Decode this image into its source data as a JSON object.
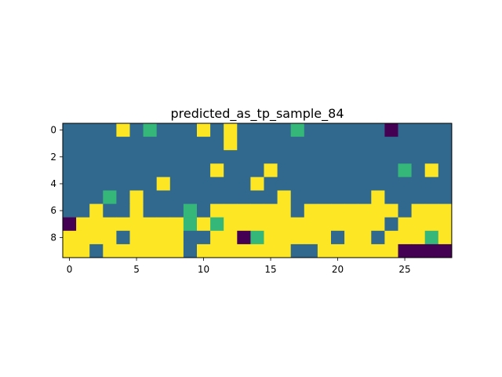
{
  "chart_data": {
    "type": "heatmap",
    "title": "predicted_as_tp_sample_84",
    "xlabel": "",
    "ylabel": "",
    "x_ticks": [
      0,
      5,
      10,
      15,
      20,
      25
    ],
    "y_ticks": [
      0,
      2,
      4,
      6,
      8
    ],
    "xlim": [
      -0.5,
      28.5
    ],
    "ylim": [
      9.5,
      -0.5
    ],
    "grid": false,
    "colormap": "viridis",
    "value_colors": {
      "0": "#440154",
      "1": "#31688e",
      "2": "#35b779",
      "3": "#fde725"
    },
    "matrix": [
      [
        1,
        1,
        1,
        1,
        3,
        1,
        2,
        1,
        1,
        1,
        3,
        1,
        3,
        1,
        1,
        1,
        1,
        2,
        1,
        1,
        1,
        1,
        1,
        1,
        0,
        1,
        1,
        1,
        1
      ],
      [
        1,
        1,
        1,
        1,
        1,
        1,
        1,
        1,
        1,
        1,
        1,
        1,
        3,
        1,
        1,
        1,
        1,
        1,
        1,
        1,
        1,
        1,
        1,
        1,
        1,
        1,
        1,
        1,
        1
      ],
      [
        1,
        1,
        1,
        1,
        1,
        1,
        1,
        1,
        1,
        1,
        1,
        1,
        1,
        1,
        1,
        1,
        1,
        1,
        1,
        1,
        1,
        1,
        1,
        1,
        1,
        1,
        1,
        1,
        1
      ],
      [
        1,
        1,
        1,
        1,
        1,
        1,
        1,
        1,
        1,
        1,
        1,
        3,
        1,
        1,
        1,
        3,
        1,
        1,
        1,
        1,
        1,
        1,
        1,
        1,
        1,
        2,
        1,
        3,
        1
      ],
      [
        1,
        1,
        1,
        1,
        1,
        1,
        1,
        3,
        1,
        1,
        1,
        1,
        1,
        1,
        3,
        1,
        1,
        1,
        1,
        1,
        1,
        1,
        1,
        1,
        1,
        1,
        1,
        1,
        1
      ],
      [
        1,
        1,
        1,
        2,
        1,
        3,
        1,
        1,
        1,
        1,
        1,
        1,
        1,
        1,
        1,
        1,
        3,
        1,
        1,
        1,
        1,
        1,
        1,
        3,
        1,
        1,
        1,
        1,
        1
      ],
      [
        1,
        1,
        3,
        1,
        1,
        3,
        1,
        1,
        1,
        2,
        1,
        3,
        3,
        3,
        3,
        3,
        3,
        1,
        3,
        3,
        3,
        3,
        3,
        3,
        3,
        1,
        3,
        3,
        3
      ],
      [
        0,
        3,
        3,
        3,
        3,
        3,
        3,
        3,
        3,
        2,
        3,
        2,
        3,
        3,
        3,
        3,
        3,
        3,
        3,
        3,
        3,
        3,
        3,
        3,
        1,
        3,
        3,
        3,
        3
      ],
      [
        3,
        3,
        3,
        3,
        1,
        3,
        3,
        3,
        3,
        1,
        1,
        3,
        3,
        0,
        2,
        3,
        3,
        3,
        3,
        3,
        1,
        3,
        3,
        1,
        3,
        3,
        3,
        2,
        3
      ],
      [
        3,
        3,
        1,
        3,
        3,
        3,
        3,
        3,
        3,
        1,
        3,
        3,
        3,
        3,
        3,
        3,
        3,
        1,
        1,
        3,
        3,
        3,
        3,
        3,
        3,
        0,
        0,
        0,
        0
      ]
    ]
  }
}
